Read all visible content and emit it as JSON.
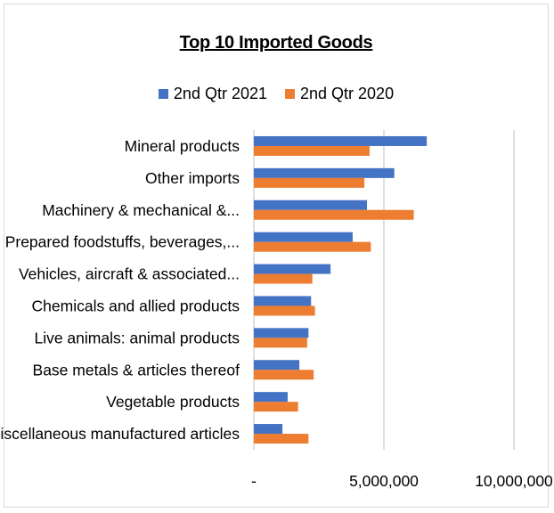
{
  "chart_data": {
    "type": "bar",
    "orientation": "horizontal",
    "title": "Top 10 Imported Goods",
    "categories": [
      "Mineral products",
      "Other imports",
      "Machinery & mechanical &...",
      "Prepared foodstuffs, beverages,...",
      "Vehicles, aircraft & associated...",
      "Chemicals and allied products",
      "Live animals: animal products",
      "Base metals & articles thereof",
      "Vegetable products",
      "Miscellaneous manufactured articles"
    ],
    "series": [
      {
        "name": "2nd Qtr 2021",
        "color": "#4472C4",
        "values": [
          6650000,
          5400000,
          4350000,
          3800000,
          2950000,
          2200000,
          2100000,
          1750000,
          1300000,
          1100000
        ]
      },
      {
        "name": "2nd Qtr 2020",
        "color": "#ED7D31",
        "values": [
          4450000,
          4250000,
          6150000,
          4500000,
          2250000,
          2350000,
          2050000,
          2300000,
          1700000,
          2100000
        ]
      }
    ],
    "xlim": [
      0,
      10000000
    ],
    "xticks": [
      0,
      5000000,
      10000000
    ],
    "xtick_labels": [
      "-",
      "5,000,000",
      "10,000,000"
    ],
    "grid": true,
    "legend_position": "top"
  }
}
